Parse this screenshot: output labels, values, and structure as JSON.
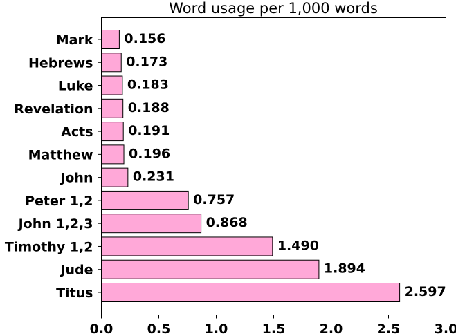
{
  "chart_data": {
    "type": "bar",
    "orientation": "horizontal",
    "title": "Word usage per 1,000 words",
    "xlabel": "",
    "ylabel": "",
    "categories": [
      "Mark",
      "Hebrews",
      "Luke",
      "Revelation",
      "Acts",
      "Matthew",
      "John",
      "Peter 1,2",
      "John 1,2,3",
      "Timothy 1,2",
      "Jude",
      "Titus"
    ],
    "values": [
      0.156,
      0.173,
      0.183,
      0.188,
      0.191,
      0.196,
      0.231,
      0.757,
      0.868,
      1.49,
      1.894,
      2.597
    ],
    "data_labels": [
      "0.156",
      "0.173",
      "0.183",
      "0.188",
      "0.191",
      "0.196",
      "0.231",
      "0.757",
      "0.868",
      "1.490",
      "1.894",
      "2.597"
    ],
    "xlim": [
      0,
      3.0
    ],
    "xticks": [
      "0.0",
      "0.5",
      "1.0",
      "1.5",
      "2.0",
      "2.5",
      "3.0"
    ],
    "grid": false,
    "bar_color": "#ffa8d8"
  }
}
